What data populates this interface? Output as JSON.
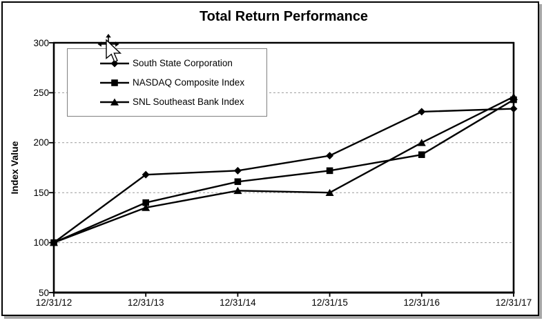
{
  "title": "Total Return Performance",
  "chart_data": {
    "type": "line",
    "title": "Total Return Performance",
    "xlabel": "",
    "ylabel": "Index Value",
    "x_labels": [
      "12/31/12",
      "12/31/13",
      "12/31/14",
      "12/31/15",
      "12/31/16",
      "12/31/17"
    ],
    "y_ticks": [
      300,
      250,
      200,
      150,
      100,
      50
    ],
    "ylim": [
      50,
      300
    ],
    "grid": "horizontal-dashed",
    "legend_position": "top-left-inside",
    "series": [
      {
        "name": "South State Corporation",
        "marker": "diamond",
        "color": "#000000",
        "values": [
          100,
          168,
          172,
          187,
          231,
          234
        ]
      },
      {
        "name": "NASDAQ Composite Index",
        "marker": "square",
        "color": "#000000",
        "values": [
          100,
          140,
          161,
          172,
          188,
          243
        ]
      },
      {
        "name": "SNL Southeast Bank Index",
        "marker": "triangle",
        "color": "#000000",
        "values": [
          100,
          135,
          152,
          150,
          200,
          246
        ]
      }
    ]
  },
  "colors": {
    "line": "#000000",
    "grid": "#9a9a9a",
    "legend_border": "#7f7f7f",
    "frame_border": "#000000",
    "frame_shadow": "#a6a6a6",
    "background": "#ffffff"
  },
  "cursor": {
    "type": "move-pointer"
  }
}
